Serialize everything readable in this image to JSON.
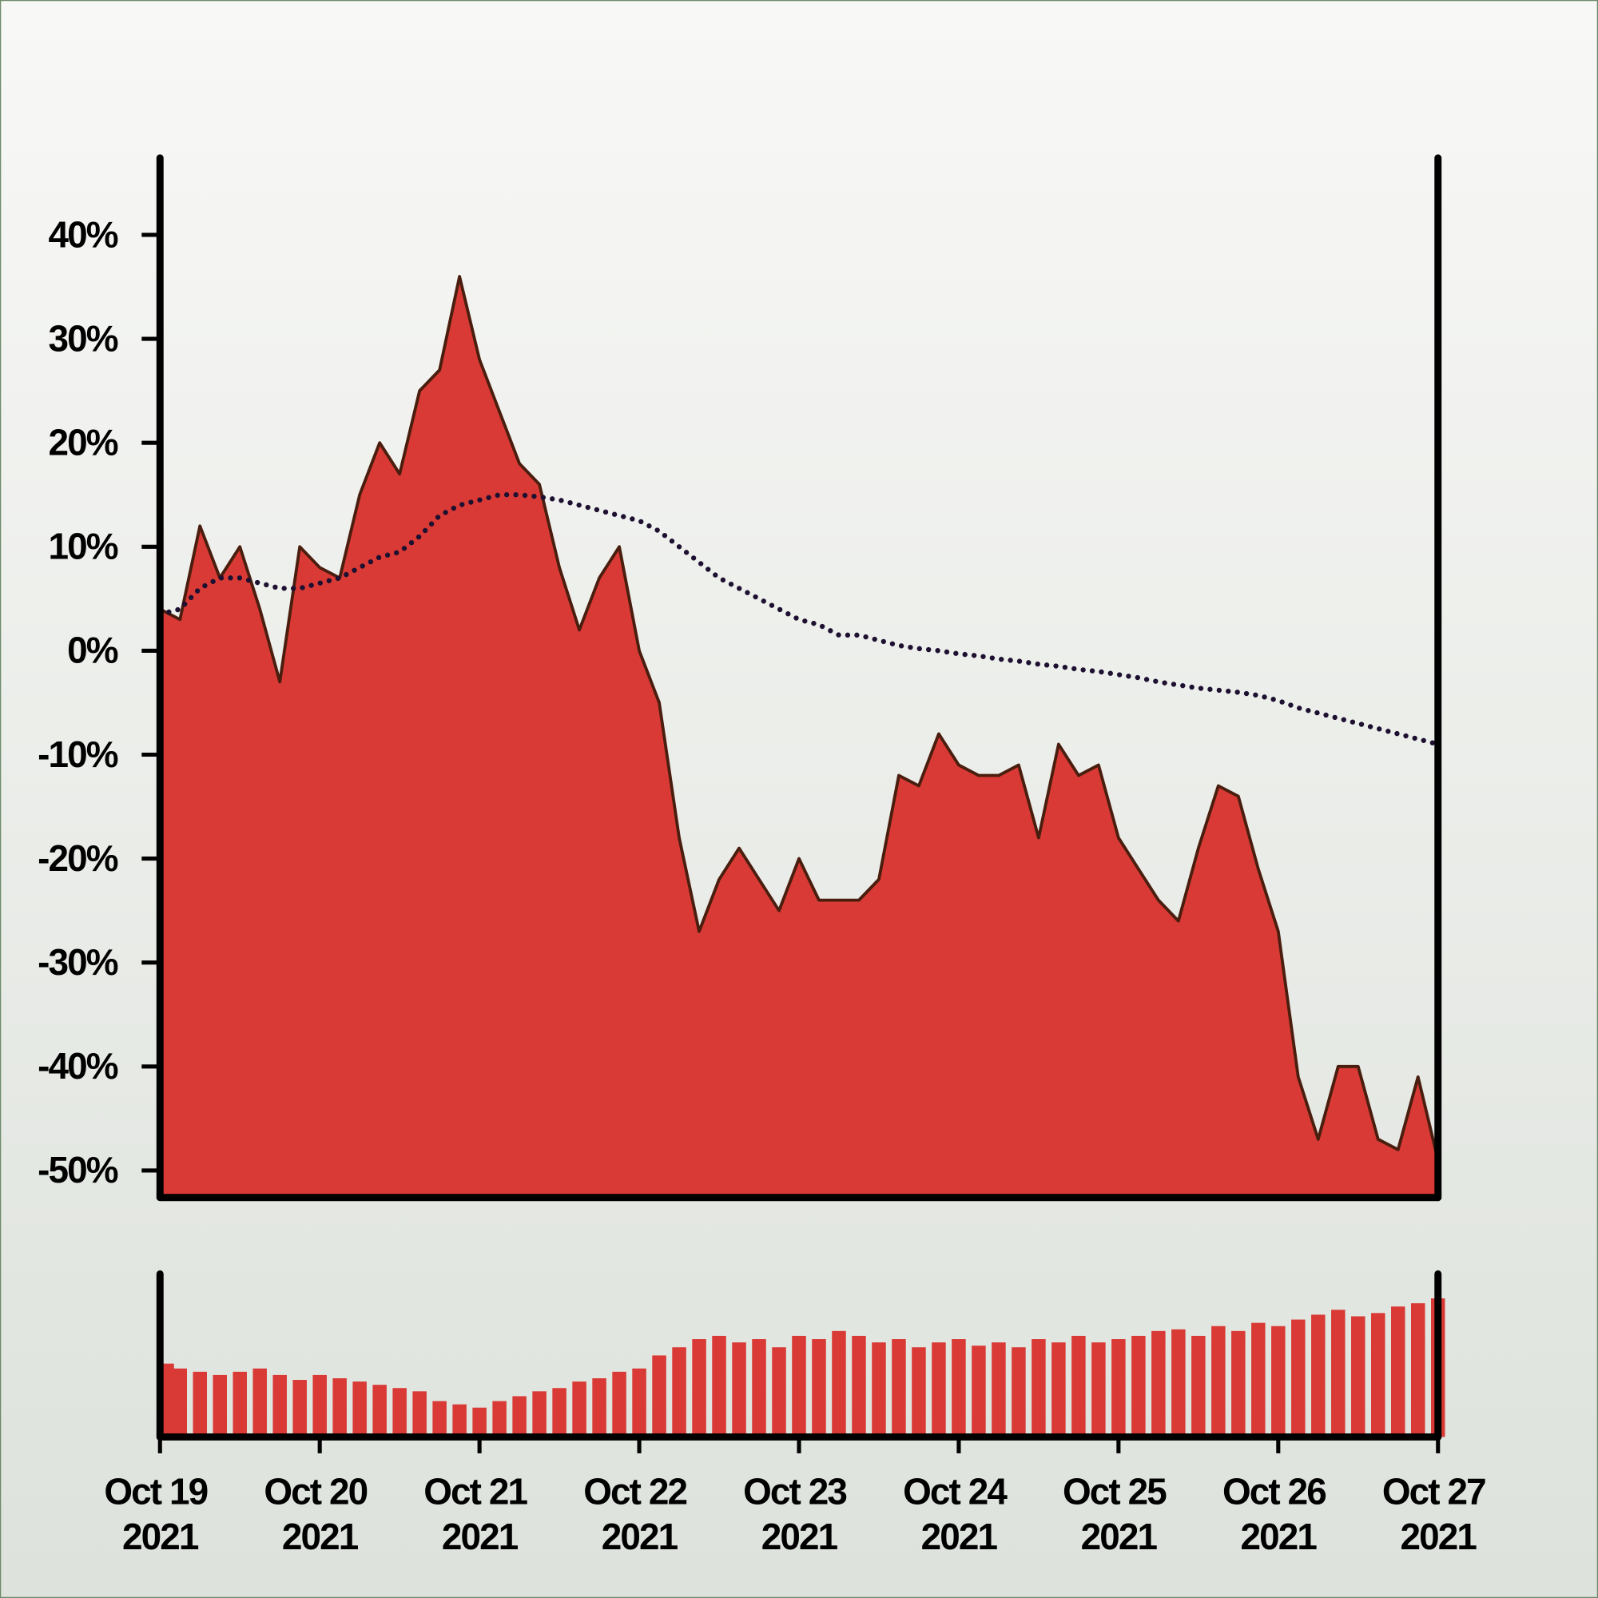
{
  "chart_data": [
    {
      "type": "area",
      "x": [
        "2021-10-19 00:00",
        "2021-10-19 03:00",
        "2021-10-19 06:00",
        "2021-10-19 09:00",
        "2021-10-19 12:00",
        "2021-10-19 15:00",
        "2021-10-19 18:00",
        "2021-10-19 21:00",
        "2021-10-20 00:00",
        "2021-10-20 03:00",
        "2021-10-20 06:00",
        "2021-10-20 09:00",
        "2021-10-20 12:00",
        "2021-10-20 15:00",
        "2021-10-20 18:00",
        "2021-10-20 21:00",
        "2021-10-21 00:00",
        "2021-10-21 03:00",
        "2021-10-21 06:00",
        "2021-10-21 09:00",
        "2021-10-21 12:00",
        "2021-10-21 15:00",
        "2021-10-21 18:00",
        "2021-10-21 21:00",
        "2021-10-22 00:00",
        "2021-10-22 03:00",
        "2021-10-22 06:00",
        "2021-10-22 09:00",
        "2021-10-22 12:00",
        "2021-10-22 15:00",
        "2021-10-22 18:00",
        "2021-10-22 21:00",
        "2021-10-23 00:00",
        "2021-10-23 03:00",
        "2021-10-23 06:00",
        "2021-10-23 09:00",
        "2021-10-23 12:00",
        "2021-10-23 15:00",
        "2021-10-23 18:00",
        "2021-10-23 21:00",
        "2021-10-24 00:00",
        "2021-10-24 03:00",
        "2021-10-24 06:00",
        "2021-10-24 09:00",
        "2021-10-24 12:00",
        "2021-10-24 15:00",
        "2021-10-24 18:00",
        "2021-10-24 21:00",
        "2021-10-25 00:00",
        "2021-10-25 03:00",
        "2021-10-25 06:00",
        "2021-10-25 09:00",
        "2021-10-25 12:00",
        "2021-10-25 15:00",
        "2021-10-25 18:00",
        "2021-10-25 21:00",
        "2021-10-26 00:00",
        "2021-10-26 03:00",
        "2021-10-26 06:00",
        "2021-10-26 09:00",
        "2021-10-26 12:00",
        "2021-10-26 15:00",
        "2021-10-26 18:00",
        "2021-10-26 21:00",
        "2021-10-27 00:00"
      ],
      "series": [
        {
          "type": "area",
          "color": "#d93a35",
          "line_color": "#4a1e0f",
          "values": [
            4,
            3,
            12,
            7,
            10,
            4,
            -3,
            10,
            8,
            7,
            15,
            20,
            17,
            25,
            27,
            36,
            28,
            23,
            18,
            16,
            8,
            2,
            7,
            10,
            0,
            -5,
            -18,
            -27,
            -22,
            -19,
            -22,
            -25,
            -20,
            -24,
            -24,
            -24,
            -22,
            -12,
            -13,
            -8,
            -11,
            -12,
            -12,
            -11,
            -18,
            -9,
            -12,
            -11,
            -18,
            -21,
            -24,
            -26,
            -19,
            -13,
            -14,
            -21,
            -27,
            -41,
            -47,
            -40,
            -40,
            -47,
            -48,
            -41,
            -49
          ]
        },
        {
          "type": "line",
          "color": "#1e1030",
          "linestyle": "dotted",
          "values": [
            3.5,
            4,
            6,
            7,
            7,
            6.5,
            6,
            6,
            6.5,
            7,
            8,
            9,
            9.5,
            11,
            13,
            14,
            14.5,
            15,
            15,
            14.8,
            14.5,
            14,
            13.5,
            13,
            12.5,
            11.5,
            10,
            8.5,
            7,
            6,
            5,
            4,
            3,
            2.5,
            1.5,
            1.5,
            1,
            0.5,
            0.2,
            0,
            -0.3,
            -0.5,
            -0.8,
            -1,
            -1.3,
            -1.5,
            -1.8,
            -2,
            -2.3,
            -2.6,
            -3,
            -3.3,
            -3.6,
            -3.8,
            -4,
            -4.3,
            -4.8,
            -5.5,
            -6,
            -6.5,
            -7,
            -7.5,
            -8,
            -8.5,
            -9
          ]
        }
      ],
      "xlim": [
        "2021-10-19 00:00",
        "2021-10-27 00:00"
      ],
      "ylim": [
        -52.6,
        47.4
      ],
      "yticks": [
        {
          "value": 40,
          "label": "40%"
        },
        {
          "value": 30,
          "label": "30%"
        },
        {
          "value": 20,
          "label": "20%"
        },
        {
          "value": 10,
          "label": "10%"
        },
        {
          "value": 0,
          "label": "0%"
        },
        {
          "value": -10,
          "label": "-10%"
        },
        {
          "value": -20,
          "label": "-20%"
        },
        {
          "value": -30,
          "label": "-30%"
        },
        {
          "value": -40,
          "label": "-40%"
        },
        {
          "value": -50,
          "label": "-50%"
        }
      ]
    },
    {
      "type": "bar",
      "color": "#d93a35",
      "x": [
        "2021-10-19 00:00",
        "2021-10-19 03:00",
        "2021-10-19 06:00",
        "2021-10-19 09:00",
        "2021-10-19 12:00",
        "2021-10-19 15:00",
        "2021-10-19 18:00",
        "2021-10-19 21:00",
        "2021-10-20 00:00",
        "2021-10-20 03:00",
        "2021-10-20 06:00",
        "2021-10-20 09:00",
        "2021-10-20 12:00",
        "2021-10-20 15:00",
        "2021-10-20 18:00",
        "2021-10-20 21:00",
        "2021-10-21 00:00",
        "2021-10-21 03:00",
        "2021-10-21 06:00",
        "2021-10-21 09:00",
        "2021-10-21 12:00",
        "2021-10-21 15:00",
        "2021-10-21 18:00",
        "2021-10-21 21:00",
        "2021-10-22 00:00",
        "2021-10-22 03:00",
        "2021-10-22 06:00",
        "2021-10-22 09:00",
        "2021-10-22 12:00",
        "2021-10-22 15:00",
        "2021-10-22 18:00",
        "2021-10-22 21:00",
        "2021-10-23 00:00",
        "2021-10-23 03:00",
        "2021-10-23 06:00",
        "2021-10-23 09:00",
        "2021-10-23 12:00",
        "2021-10-23 15:00",
        "2021-10-23 18:00",
        "2021-10-23 21:00",
        "2021-10-24 00:00",
        "2021-10-24 03:00",
        "2021-10-24 06:00",
        "2021-10-24 09:00",
        "2021-10-24 12:00",
        "2021-10-24 15:00",
        "2021-10-24 18:00",
        "2021-10-24 21:00",
        "2021-10-25 00:00",
        "2021-10-25 03:00",
        "2021-10-25 06:00",
        "2021-10-25 09:00",
        "2021-10-25 12:00",
        "2021-10-25 15:00",
        "2021-10-25 18:00",
        "2021-10-25 21:00",
        "2021-10-26 00:00",
        "2021-10-26 03:00",
        "2021-10-26 06:00",
        "2021-10-26 09:00",
        "2021-10-26 12:00",
        "2021-10-26 15:00",
        "2021-10-26 18:00",
        "2021-10-26 21:00",
        "2021-10-27 00:00"
      ],
      "values": [
        45,
        42,
        40,
        38,
        40,
        42,
        38,
        35,
        38,
        36,
        34,
        32,
        30,
        28,
        22,
        20,
        18,
        22,
        25,
        28,
        30,
        34,
        36,
        40,
        42,
        50,
        55,
        60,
        62,
        58,
        60,
        55,
        62,
        60,
        65,
        62,
        58,
        60,
        55,
        58,
        60,
        56,
        58,
        55,
        60,
        58,
        62,
        58,
        60,
        62,
        65,
        66,
        62,
        68,
        65,
        70,
        68,
        72,
        75,
        78,
        74,
        76,
        80,
        82,
        85
      ],
      "xlim": [
        "2021-10-19 00:00",
        "2021-10-27 00:00"
      ],
      "ylim": [
        0,
        100
      ],
      "xticks": [
        {
          "value": "2021-10-19",
          "label": "Oct 19 2021"
        },
        {
          "value": "2021-10-20",
          "label": "Oct 20 2021"
        },
        {
          "value": "2021-10-21",
          "label": "Oct 21 2021"
        },
        {
          "value": "2021-10-22",
          "label": "Oct 22 2021"
        },
        {
          "value": "2021-10-23",
          "label": "Oct 23 2021"
        },
        {
          "value": "2021-10-24",
          "label": "Oct 24 2021"
        },
        {
          "value": "2021-10-25",
          "label": "Oct 25 2021"
        },
        {
          "value": "2021-10-26",
          "label": "Oct 26 2021"
        },
        {
          "value": "2021-10-27",
          "label": "Oct 27 2021"
        }
      ]
    }
  ]
}
